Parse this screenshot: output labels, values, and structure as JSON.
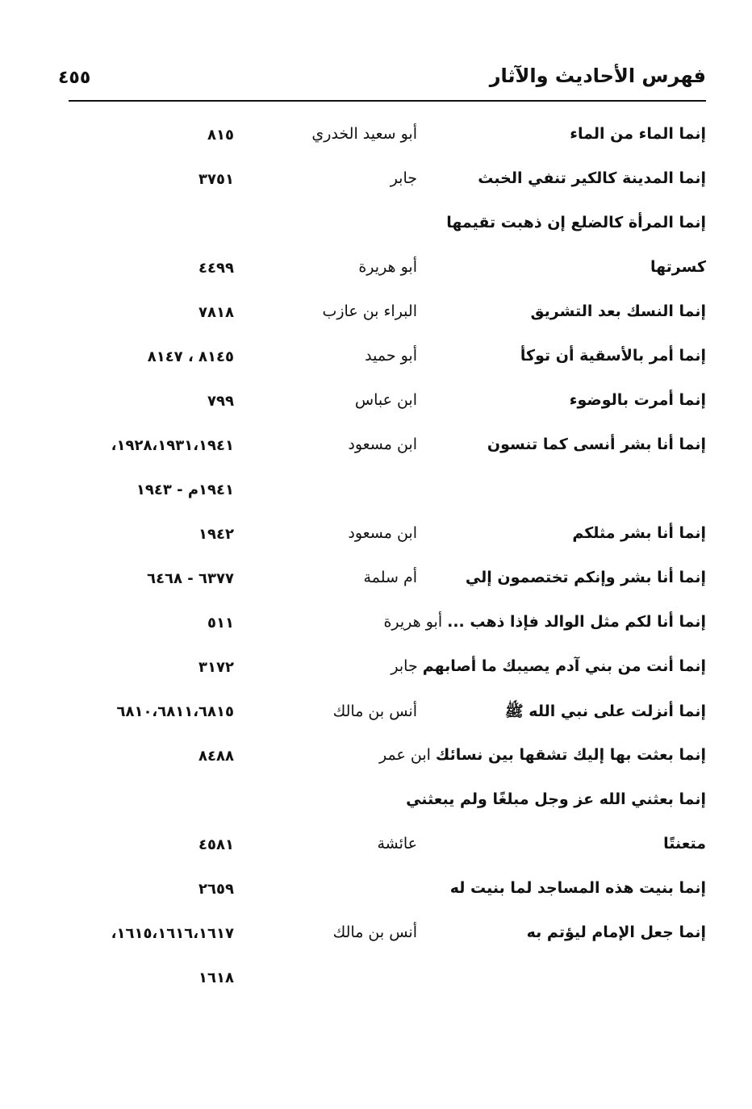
{
  "header": {
    "title": "فهرس الأحاديث والآثار",
    "page_number": "٤٥٥"
  },
  "rows": [
    {
      "hadith": "إنما الماء من الماء",
      "narrator": "أبو سعيد الخدري",
      "refs": "٨١٥"
    },
    {
      "hadith": "إنما المدينة كالكير تنفي الخبث",
      "narrator": "جابر",
      "refs": "٣٧٥١"
    },
    {
      "hadith": "إنما المرأة كالضلع إن ذهبت تقيمها",
      "narrator": "",
      "refs": ""
    },
    {
      "hadith": "كسرتها",
      "narrator": "أبو هريرة",
      "refs": "٤٤٩٩"
    },
    {
      "hadith": "إنما النسك بعد التشريق",
      "narrator": "البراء بن عازب",
      "refs": "٧٨١٨"
    },
    {
      "hadith": "إنما أمر بالأسقية أن توكأ",
      "narrator": "أبو حميد",
      "refs": "٨١٤٥ ، ٨١٤٧"
    },
    {
      "hadith": "إنما أمرت بالوضوء",
      "narrator": "ابن عباس",
      "refs": "٧٩٩"
    },
    {
      "hadith": "إنما أنا بشر أنسى كما تنسون",
      "narrator": "ابن مسعود",
      "refs": "١٩٢٨،١٩٣١،١٩٤١،"
    },
    {
      "hadith": "",
      "narrator": "",
      "refs": "١٩٤١م - ١٩٤٣"
    },
    {
      "hadith": "إنما أنا بشر مثلكم",
      "narrator": "ابن مسعود",
      "refs": "١٩٤٢"
    },
    {
      "hadith": "إنما أنا بشر وإنكم تختصمون إلي",
      "narrator": "أم سلمة",
      "refs": "٦٣٧٧ - ٦٤٦٨"
    },
    {
      "hadith": "إنما أنا لكم مثل الوالد فإذا ذهب ...",
      "narrator": "أبو هريرة",
      "refs": "٥١١",
      "inline": true
    },
    {
      "hadith": "إنما أنت من بني آدم يصيبك ما أصابهم",
      "narrator": "جابر",
      "refs": "٣١٧٢",
      "inline": true
    },
    {
      "hadith": "إنما أنزلت على نبي الله ﷺ",
      "narrator": "أنس بن مالك",
      "refs": "٦٨١٠،٦٨١١،٦٨١٥"
    },
    {
      "hadith": "إنما بعثت بها إليك تشقها بين نسائك",
      "narrator": "ابن عمر",
      "refs": "٨٤٨٨",
      "inline": true
    },
    {
      "hadith": "إنما بعثني الله عز وجل مبلغًا ولم يبعثني",
      "narrator": "",
      "refs": ""
    },
    {
      "hadith": "متعنتًا",
      "narrator": "عائشة",
      "refs": "٤٥٨١"
    },
    {
      "hadith": "إنما بنيت هذه المساجد لما بنيت له",
      "narrator": "",
      "refs": "٢٦٥٩"
    },
    {
      "hadith": "إنما جعل الإمام ليؤتم به",
      "narrator": "أنس بن مالك",
      "refs": "١٦١٥،١٦١٦،١٦١٧،"
    },
    {
      "hadith": "",
      "narrator": "",
      "refs": "١٦١٨"
    }
  ]
}
